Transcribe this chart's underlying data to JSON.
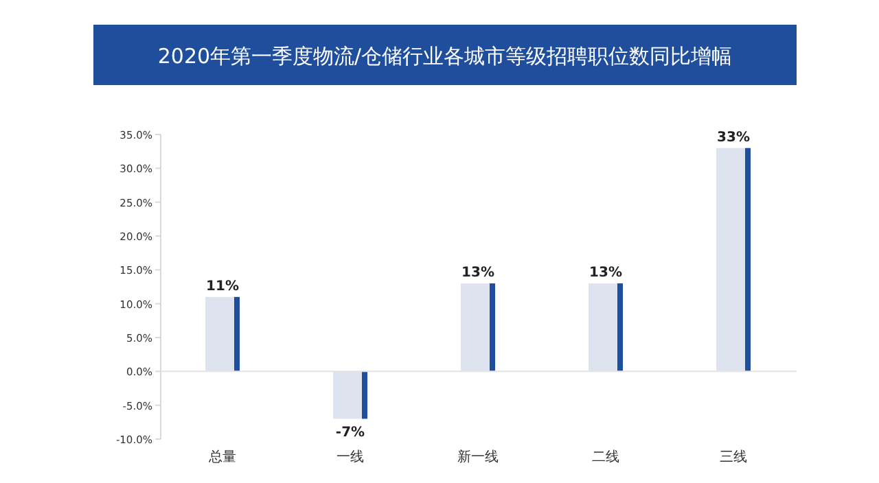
{
  "chart_data": {
    "type": "bar",
    "title": "2020年第一季度物流/仓储行业各城市等级招聘职位数同比增幅",
    "categories": [
      "总量",
      "一线",
      "新一线",
      "二线",
      "三线"
    ],
    "values": [
      11,
      -7,
      13,
      13,
      33
    ],
    "value_labels": [
      "11%",
      "-7%",
      "13%",
      "13%",
      "33%"
    ],
    "color": "#1f4e9c",
    "ylim": [
      -10,
      35
    ],
    "yticks": [
      {
        "value": -10,
        "label": "-10.0%"
      },
      {
        "value": -5,
        "label": "-5.0%"
      },
      {
        "value": 0,
        "label": "0.0%"
      },
      {
        "value": 5,
        "label": "5.0%"
      },
      {
        "value": 10,
        "label": "10.0%"
      },
      {
        "value": 15,
        "label": "15.0%"
      },
      {
        "value": 20,
        "label": "20.0%"
      },
      {
        "value": 25,
        "label": "25.0%"
      },
      {
        "value": 30,
        "label": "30.0%"
      },
      {
        "value": 35,
        "label": "35.0%"
      }
    ],
    "relative": false
  }
}
